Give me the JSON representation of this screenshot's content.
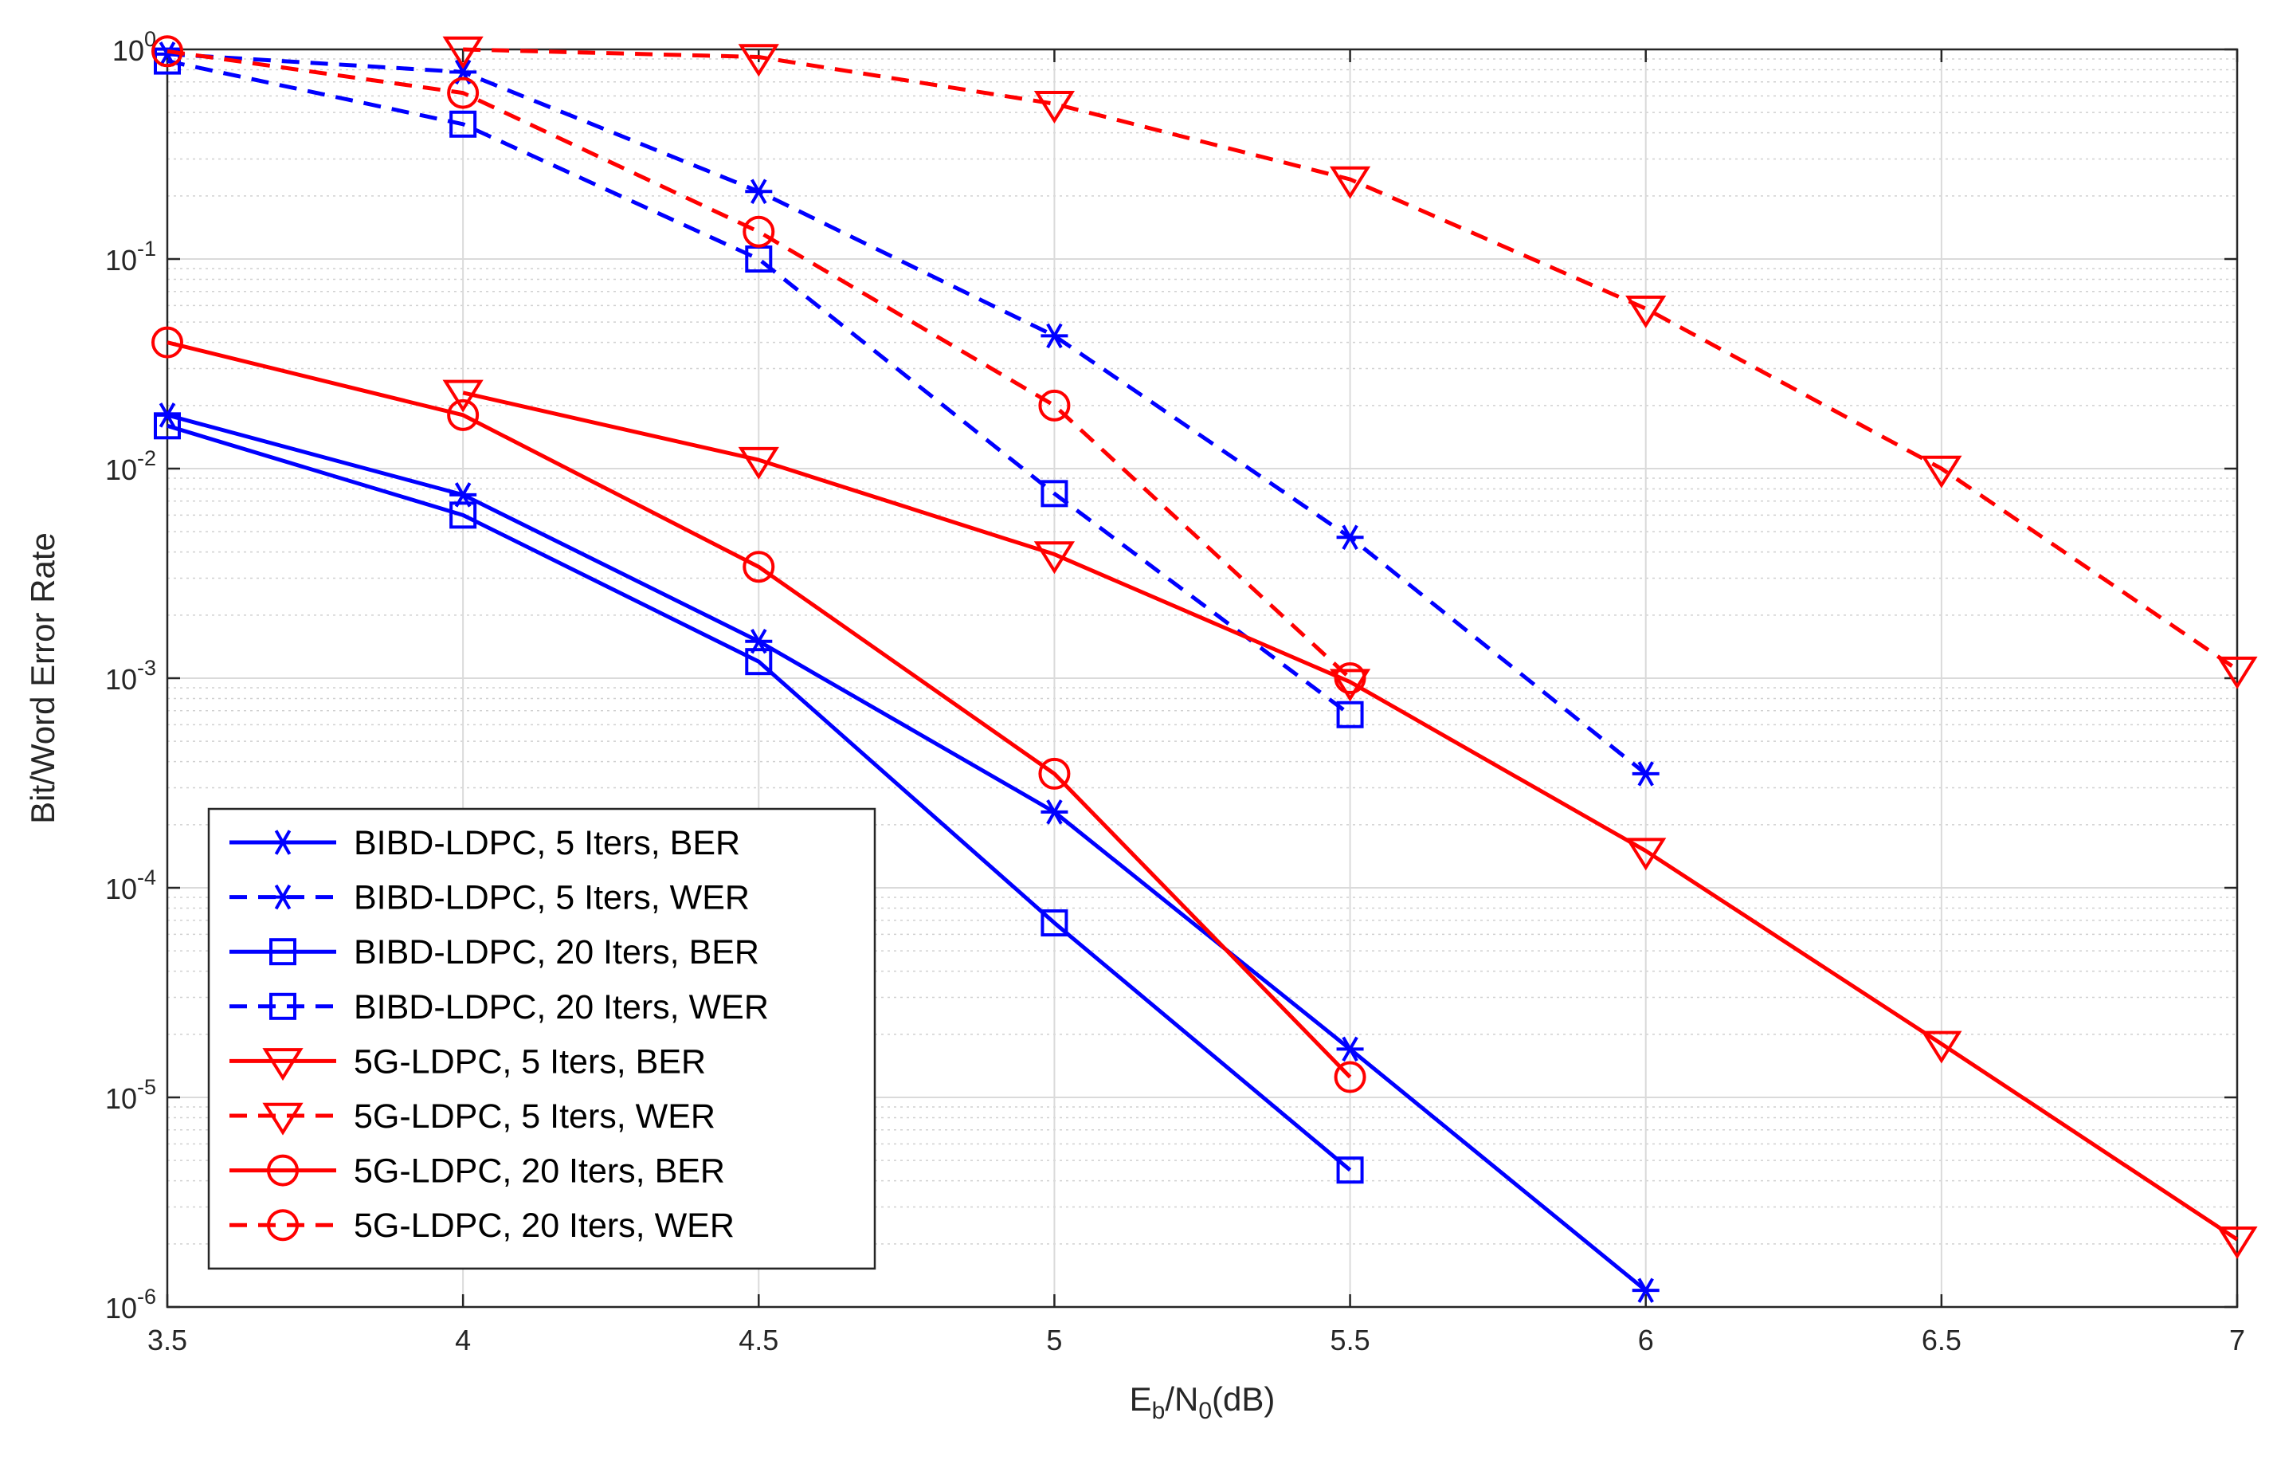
{
  "chart_data": {
    "type": "line",
    "title": "",
    "xlabel": {
      "base": "E",
      "sub1": "b",
      "mid": "/N",
      "sub2": "0",
      "tail": "(dB)"
    },
    "ylabel": "Bit/Word Error Rate",
    "xscale": "linear",
    "yscale": "log",
    "xlim": [
      3.5,
      7
    ],
    "ylim": [
      1e-06,
      1
    ],
    "grid": true,
    "legend_position": "bottom-left",
    "x_ticks": [
      3.5,
      4,
      4.5,
      5,
      5.5,
      6,
      6.5,
      7
    ],
    "x_tick_labels": [
      "3.5",
      "4",
      "4.5",
      "5",
      "5.5",
      "6",
      "6.5",
      "7"
    ],
    "y_tick_labels": [
      {
        "base": "10",
        "exp": "0"
      },
      {
        "base": "10",
        "exp": "-1"
      },
      {
        "base": "10",
        "exp": "-2"
      },
      {
        "base": "10",
        "exp": "-3"
      },
      {
        "base": "10",
        "exp": "-4"
      },
      {
        "base": "10",
        "exp": "-5"
      },
      {
        "base": "10",
        "exp": "-6"
      }
    ],
    "series": [
      {
        "name": "BIBD-LDPC, 5 Iters, BER",
        "color": "#0000ff",
        "dash": "solid",
        "marker": "asterisk",
        "x": [
          3.5,
          4,
          4.5,
          5,
          5.5,
          6
        ],
        "y": [
          0.018,
          0.0075,
          0.0015,
          0.00023,
          1.7e-05,
          1.2e-06
        ]
      },
      {
        "name": "BIBD-LDPC, 5 Iters, WER",
        "color": "#0000ff",
        "dash": "dashed",
        "marker": "asterisk",
        "x": [
          3.5,
          4,
          4.5,
          5,
          5.5,
          6
        ],
        "y": [
          0.95,
          0.78,
          0.21,
          0.043,
          0.0047,
          0.00035
        ]
      },
      {
        "name": "BIBD-LDPC, 20 Iters, BER",
        "color": "#0000ff",
        "dash": "solid",
        "marker": "square",
        "x": [
          3.5,
          4,
          4.5,
          5,
          5.5
        ],
        "y": [
          0.016,
          0.006,
          0.0012,
          6.8e-05,
          4.5e-06
        ]
      },
      {
        "name": "BIBD-LDPC, 20 Iters, WER",
        "color": "#0000ff",
        "dash": "dashed",
        "marker": "square",
        "x": [
          3.5,
          4,
          4.5,
          5,
          5.5
        ],
        "y": [
          0.88,
          0.44,
          0.1,
          0.0076,
          0.00067
        ]
      },
      {
        "name": "5G-LDPC, 5 Iters, BER",
        "color": "#ff0000",
        "dash": "solid",
        "marker": "triangle-down",
        "x": [
          4,
          4.5,
          5,
          5.5,
          6,
          6.5,
          7
        ],
        "y": [
          0.023,
          0.011,
          0.0039,
          0.00096,
          0.00015,
          1.8e-05,
          2.1e-06
        ]
      },
      {
        "name": "5G-LDPC, 5 Iters, WER",
        "color": "#ff0000",
        "dash": "dashed",
        "marker": "triangle-down",
        "x": [
          4,
          4.5,
          5,
          5.5,
          6,
          6.5,
          7
        ],
        "y": [
          1.0,
          0.92,
          0.55,
          0.24,
          0.058,
          0.01,
          0.0011
        ]
      },
      {
        "name": "5G-LDPC, 20 Iters, BER",
        "color": "#ff0000",
        "dash": "solid",
        "marker": "circle",
        "x": [
          3.5,
          4,
          4.5,
          5,
          5.5
        ],
        "y": [
          0.04,
          0.018,
          0.0034,
          0.00035,
          1.25e-05
        ]
      },
      {
        "name": "5G-LDPC, 20 Iters, WER",
        "color": "#ff0000",
        "dash": "dashed",
        "marker": "circle",
        "x": [
          3.5,
          4,
          4.5,
          5,
          5.5
        ],
        "y": [
          0.98,
          0.62,
          0.135,
          0.02,
          0.001
        ]
      }
    ]
  }
}
